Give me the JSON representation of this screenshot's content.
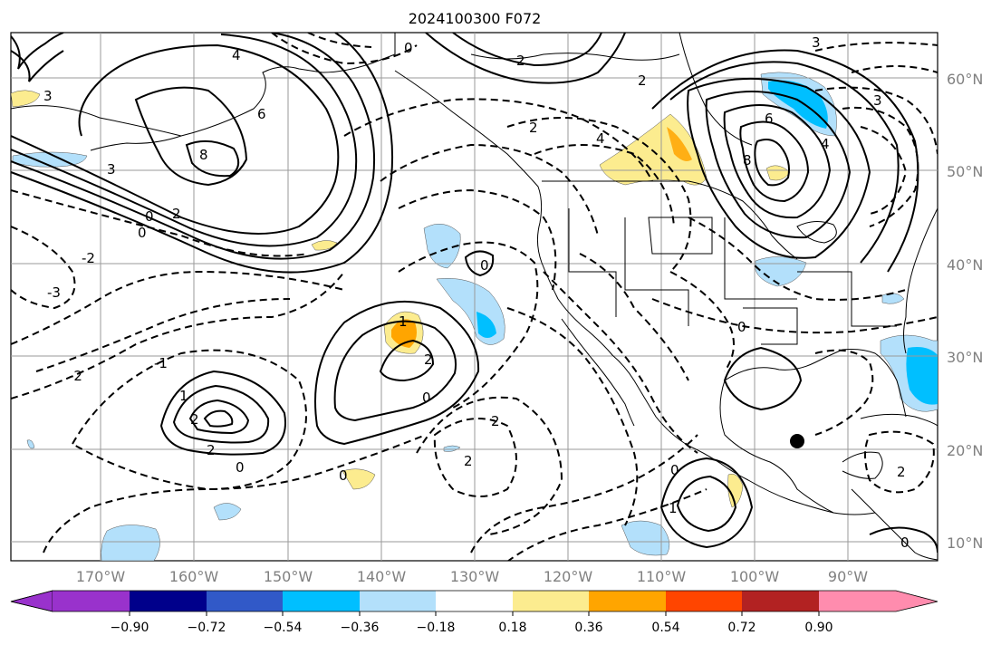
{
  "title": "2024100300 F072",
  "map": {
    "lat_labels": [
      "60°N",
      "50°N",
      "40°N",
      "30°N",
      "20°N",
      "10°N"
    ],
    "lon_labels": [
      "170°W",
      "160°W",
      "150°W",
      "140°W",
      "130°W",
      "120°W",
      "110°W",
      "100°W",
      "90°W"
    ],
    "contour_labels": [
      "-3",
      "-2",
      "-1",
      "0",
      "1",
      "2",
      "3",
      "4",
      "6",
      "8"
    ],
    "colors": {
      "grid": "#aaaaaa",
      "contour": "#000000",
      "light_blue": "#b3e0fb",
      "cyan": "#00bfff",
      "yellow": "#fcec8f",
      "orange": "#ffa500"
    }
  },
  "colorbar": {
    "levels": [
      "−0.90",
      "−0.72",
      "−0.54",
      "−0.36",
      "−0.18",
      "0.18",
      "0.36",
      "0.54",
      "0.72",
      "0.90"
    ],
    "colors": [
      "#9932cc",
      "#00008b",
      "#3159c8",
      "#00bfff",
      "#b3e0fb",
      "#ffffff",
      "#fcec8f",
      "#ffa500",
      "#ff4500",
      "#b22222",
      "#ff8cae"
    ],
    "under_color": "#9932cc",
    "over_color": "#ff8cae"
  }
}
